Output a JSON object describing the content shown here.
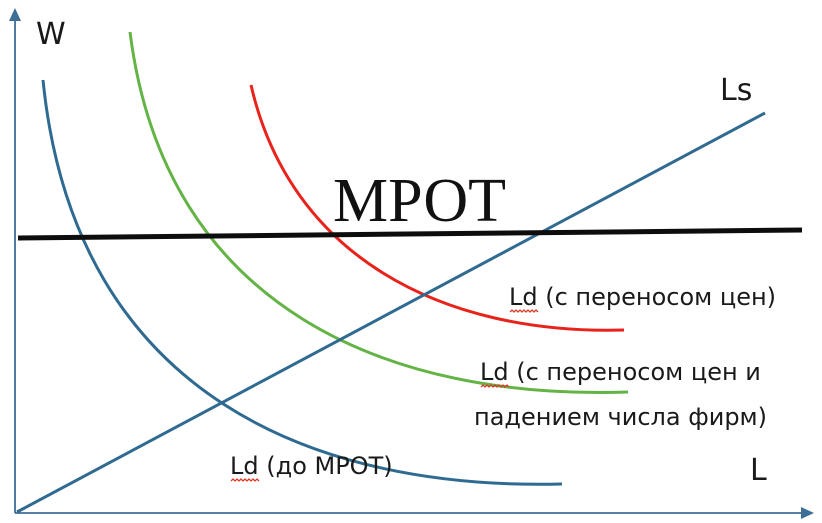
{
  "axes": {
    "y_label": "W",
    "x_label": "L"
  },
  "lines": {
    "supply_label": "Ls",
    "min_wage_label": "МРОТ"
  },
  "curves": {
    "ld_before_label": "Ld (до МРОТ)",
    "ld_shift_label": "Ld (с переносом цен)",
    "ld_shift_fall_label_line1": "Ld (с переносом цен и",
    "ld_shift_fall_label_line2": "падением числа фирм)"
  },
  "colors": {
    "axis": "#3d6e96",
    "ld_before": "#2f6a91",
    "ld_shift_fall": "#63b345",
    "ld_shift": "#e8231c",
    "supply": "#2f6a91",
    "min_wage": "#0d0d0d"
  }
}
